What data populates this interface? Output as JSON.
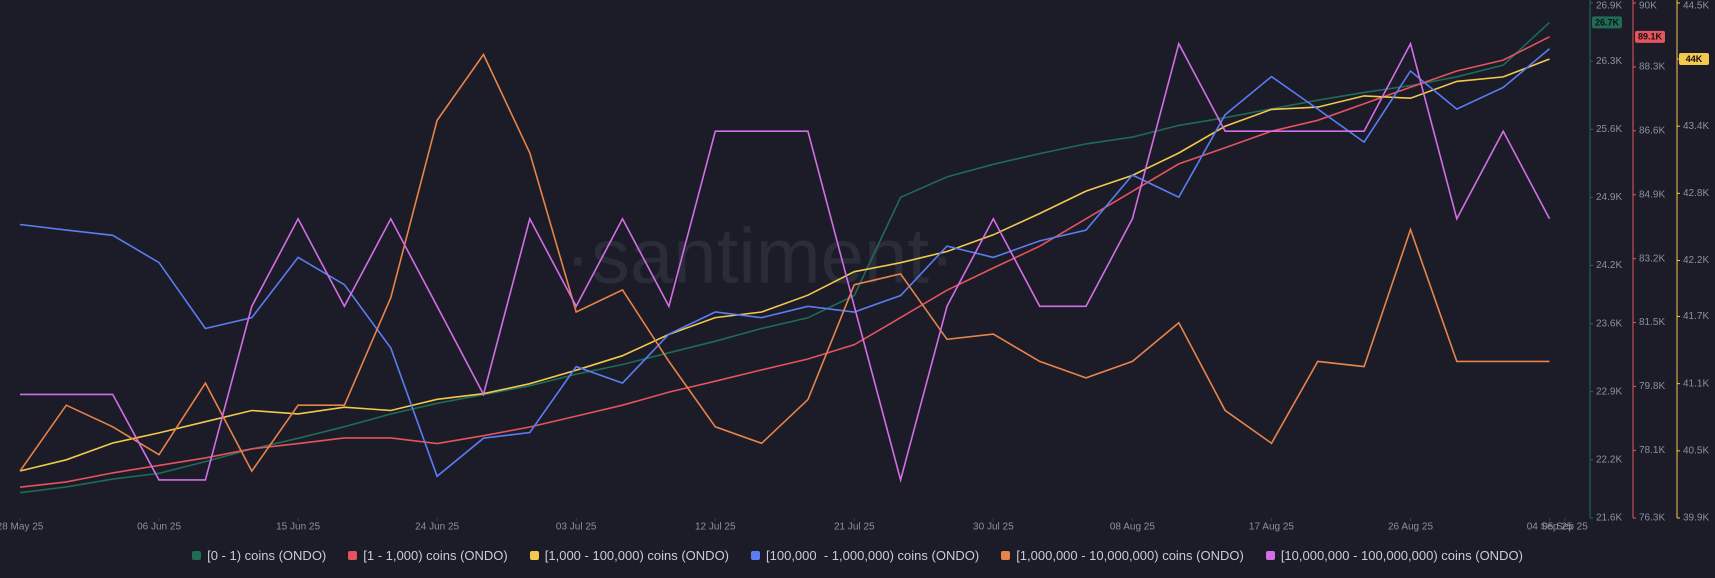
{
  "chart_data": {
    "type": "line",
    "watermark": "·santiment·",
    "x": [
      "2025-05-28",
      "2025-05-31",
      "2025-06-03",
      "2025-06-06",
      "2025-06-09",
      "2025-06-12",
      "2025-06-15",
      "2025-06-18",
      "2025-06-21",
      "2025-06-24",
      "2025-06-27",
      "2025-06-30",
      "2025-07-03",
      "2025-07-06",
      "2025-07-09",
      "2025-07-12",
      "2025-07-15",
      "2025-07-18",
      "2025-07-21",
      "2025-07-24",
      "2025-07-27",
      "2025-07-30",
      "2025-08-02",
      "2025-08-05",
      "2025-08-08",
      "2025-08-11",
      "2025-08-14",
      "2025-08-17",
      "2025-08-20",
      "2025-08-23",
      "2025-08-26",
      "2025-08-29",
      "2025-09-01",
      "2025-09-04"
    ],
    "xticks": [
      {
        "value": "2025-05-28",
        "label": "28 May 25"
      },
      {
        "value": "2025-06-06",
        "label": "06 Jun 25"
      },
      {
        "value": "2025-06-15",
        "label": "15 Jun 25"
      },
      {
        "value": "2025-06-24",
        "label": "24 Jun 25"
      },
      {
        "value": "2025-07-03",
        "label": "03 Jul 25"
      },
      {
        "value": "2025-07-12",
        "label": "12 Jul 25"
      },
      {
        "value": "2025-07-21",
        "label": "21 Jul 25"
      },
      {
        "value": "2025-07-30",
        "label": "30 Jul 25"
      },
      {
        "value": "2025-08-08",
        "label": "08 Aug 25"
      },
      {
        "value": "2025-08-17",
        "label": "17 Aug 25"
      },
      {
        "value": "2025-08-26",
        "label": "26 Aug 25"
      },
      {
        "value": "2025-09-04",
        "label": "04 Sep 25"
      },
      {
        "value": "2025-09-05",
        "label": "05 Sep 25"
      }
    ],
    "series": [
      {
        "name": "[0 - 1) coins (ONDO)",
        "color": "#1f6b55",
        "ylim": [
          21600,
          26900
        ],
        "yticks": [
          {
            "value": 21600,
            "label": "21.6K"
          },
          {
            "value": 22200,
            "label": "22.2K"
          },
          {
            "value": 22900,
            "label": "22.9K"
          },
          {
            "value": 23600,
            "label": "23.6K"
          },
          {
            "value": 24200,
            "label": "24.2K"
          },
          {
            "value": 24900,
            "label": "24.9K"
          },
          {
            "value": 25600,
            "label": "25.6K"
          },
          {
            "value": 26300,
            "label": "26.3K"
          },
          {
            "value": 26900,
            "label": "26.9K"
          }
        ],
        "values": [
          21860,
          21920,
          22000,
          22060,
          22180,
          22310,
          22420,
          22540,
          22670,
          22780,
          22870,
          22960,
          23080,
          23180,
          23300,
          23420,
          23550,
          23660,
          23890,
          24900,
          25110,
          25240,
          25350,
          25450,
          25520,
          25640,
          25720,
          25810,
          25900,
          25980,
          26050,
          26140,
          26260,
          26700
        ],
        "value_labels": [
          null,
          null,
          null,
          null,
          null,
          null,
          null,
          null,
          null,
          null,
          null,
          null,
          null,
          null,
          null,
          null,
          null,
          null,
          null,
          null,
          null,
          null,
          null,
          null,
          null,
          null,
          null,
          null,
          null,
          null,
          null,
          null,
          null,
          "26.7K"
        ]
      },
      {
        "name": "[1 - 1,000) coins (ONDO)",
        "color": "#e5535e",
        "ylim": [
          76300,
          90000
        ],
        "yticks": [
          {
            "value": 76300,
            "label": "76.3K"
          },
          {
            "value": 78100,
            "label": "78.1K"
          },
          {
            "value": 79800,
            "label": "79.8K"
          },
          {
            "value": 81500,
            "label": "81.5K"
          },
          {
            "value": 83200,
            "label": "83.2K"
          },
          {
            "value": 84900,
            "label": "84.9K"
          },
          {
            "value": 86600,
            "label": "86.6K"
          },
          {
            "value": 88300,
            "label": "88.3K"
          },
          {
            "value": 90000,
            "label": "90K"
          }
        ],
        "values": [
          77120,
          77260,
          77500,
          77700,
          77900,
          78140,
          78280,
          78430,
          78430,
          78280,
          78490,
          78720,
          79010,
          79300,
          79650,
          79940,
          80240,
          80530,
          80910,
          81630,
          82360,
          82950,
          83530,
          84260,
          84990,
          85720,
          86150,
          86590,
          86880,
          87320,
          87760,
          88190,
          88480,
          89100
        ],
        "value_labels": [
          null,
          null,
          null,
          null,
          null,
          null,
          null,
          null,
          null,
          null,
          null,
          null,
          null,
          null,
          null,
          null,
          null,
          null,
          null,
          null,
          null,
          null,
          null,
          null,
          null,
          null,
          null,
          null,
          null,
          null,
          null,
          null,
          null,
          "89.1K"
        ]
      },
      {
        "name": "[1,000 - 100,000) coins (ONDO)",
        "color": "#f2c94c",
        "ylim": [
          39900,
          44500
        ],
        "yticks": [
          {
            "value": 39900,
            "label": "39.9K"
          },
          {
            "value": 40500,
            "label": "40.5K"
          },
          {
            "value": 41100,
            "label": "41.1K"
          },
          {
            "value": 41700,
            "label": "41.7K"
          },
          {
            "value": 42200,
            "label": "42.2K"
          },
          {
            "value": 42800,
            "label": "42.8K"
          },
          {
            "value": 43400,
            "label": "43.4K"
          },
          {
            "value": 44000,
            "label": "44K"
          },
          {
            "value": 44500,
            "label": "44.5K"
          }
        ],
        "values": [
          40320,
          40420,
          40570,
          40660,
          40760,
          40860,
          40830,
          40890,
          40860,
          40960,
          41010,
          41100,
          41220,
          41350,
          41540,
          41690,
          41740,
          41890,
          42100,
          42180,
          42280,
          42430,
          42620,
          42820,
          42960,
          43160,
          43400,
          43550,
          43570,
          43670,
          43650,
          43800,
          43840,
          44000
        ],
        "value_labels": [
          null,
          null,
          null,
          null,
          null,
          null,
          null,
          null,
          null,
          null,
          null,
          null,
          null,
          null,
          null,
          null,
          null,
          null,
          null,
          null,
          null,
          null,
          null,
          null,
          null,
          null,
          null,
          null,
          null,
          null,
          null,
          null,
          null,
          "44K"
        ]
      },
      {
        "name": "[100,000  - 1,000,000) coins (ONDO)",
        "color": "#5a7df2",
        "ylim": [
          0,
          100
        ],
        "values": [
          57.0,
          55.9,
          54.9,
          49.6,
          36.8,
          38.9,
          50.6,
          45.3,
          33.0,
          8.1,
          15.5,
          16.6,
          29.4,
          26.2,
          35.7,
          40.0,
          38.9,
          41.1,
          40.0,
          43.2,
          52.8,
          50.6,
          53.8,
          55.9,
          66.6,
          62.3,
          78.3,
          85.7,
          79.4,
          73.0,
          86.8,
          79.4,
          83.6,
          91.1
        ]
      },
      {
        "name": "[1,000,000 - 10,000,000) coins (ONDO)",
        "color": "#e8834a",
        "ylim": [
          0,
          100
        ],
        "values": [
          9.1,
          21.9,
          17.7,
          12.3,
          26.2,
          9.1,
          21.9,
          21.9,
          42.8,
          77.2,
          90.0,
          70.9,
          40.0,
          44.3,
          30.4,
          17.7,
          14.5,
          23.0,
          45.3,
          47.4,
          34.7,
          35.7,
          30.4,
          27.2,
          30.4,
          37.9,
          20.9,
          14.5,
          30.4,
          29.4,
          56.0,
          30.4,
          30.4,
          30.4
        ]
      },
      {
        "name": "[10,000,000 - 100,000,000) coins (ONDO)",
        "color": "#d46ee6",
        "ylim": [
          0,
          100
        ],
        "values": [
          24.0,
          24.0,
          24.0,
          7.4,
          7.4,
          41.1,
          58.1,
          41.1,
          58.1,
          41.1,
          24.0,
          58.1,
          41.1,
          58.1,
          41.1,
          75.1,
          75.1,
          75.1,
          41.1,
          7.4,
          41.1,
          58.1,
          41.1,
          41.1,
          58.1,
          92.1,
          75.1,
          75.1,
          75.1,
          75.1,
          92.1,
          58.1,
          75.1,
          58.1
        ]
      }
    ]
  }
}
